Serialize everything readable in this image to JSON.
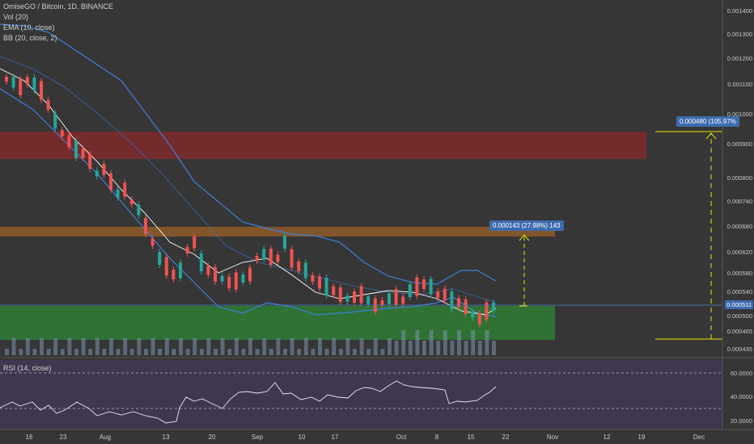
{
  "header": {
    "symbol": "OmiseGO / Bitcoin, 1D, BINANCE",
    "indicators": [
      "Vol (20)",
      "EMA (10, close)",
      "BB (20, close, 2)"
    ]
  },
  "rsi": {
    "label": "RSI (14, close)",
    "ticks": [
      "60.0000",
      "40.0000",
      "20.0000"
    ]
  },
  "price_axis": {
    "ticks": [
      "0.001400",
      "0.001300",
      "0.001200",
      "0.001100",
      "0.001000",
      "0.000900",
      "0.000800",
      "0.000740",
      "0.000680",
      "0.000620",
      "0.000580",
      "0.000540",
      "0.000500",
      "0.000465",
      "0.000435"
    ],
    "last_price": "0.000511"
  },
  "time_axis": {
    "ticks": [
      "16",
      "23",
      "Aug",
      "13",
      "20",
      "Sep",
      "10",
      "17",
      "Oct",
      "8",
      "15",
      "22",
      "Nov",
      "12",
      "19",
      "Dec"
    ]
  },
  "measurements": [
    {
      "text": "0.000143 (27.98%) 143"
    },
    {
      "text": "0.000480 (105.97%"
    }
  ],
  "colors": {
    "background": "#363636",
    "bull": "#26a69a",
    "bear": "#ef5350",
    "support_zone": "#2e7d32",
    "resistance_zone_red": "#8b2c2c",
    "resistance_zone_orange": "#8a5a2a",
    "bollinger": "#3f7fd9",
    "ema": "#ffffff",
    "measure": "#e6e600",
    "rsi_panel": "#3f3750"
  }
}
